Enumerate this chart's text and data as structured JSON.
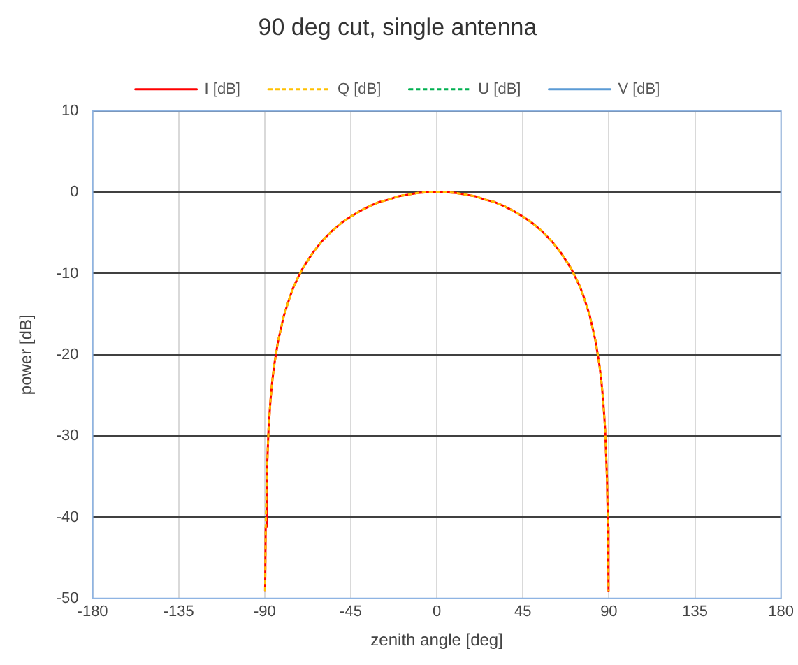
{
  "chart_data": {
    "type": "line",
    "title": "90 deg cut, single antenna",
    "xlabel": "zenith angle [deg]",
    "ylabel": "power [dB]",
    "x": [
      -89.8,
      -89.5,
      -89,
      -88,
      -87,
      -86,
      -85,
      -83,
      -80,
      -77,
      -75,
      -72,
      -70,
      -65,
      -60,
      -55,
      -50,
      -45,
      -40,
      -35,
      -30,
      -25,
      -20,
      -15,
      -10,
      -5,
      0,
      5,
      10,
      15,
      20,
      25,
      30,
      35,
      40,
      45,
      50,
      55,
      60,
      65,
      70,
      72,
      75,
      77,
      80,
      83,
      85,
      86,
      87,
      88,
      89,
      89.5,
      89.8
    ],
    "series": [
      {
        "name": "I [dB]",
        "color": "#ff0000",
        "line_style": "solid",
        "values": [
          -49.1,
          -41.2,
          -35.2,
          -29.1,
          -25.6,
          -23.1,
          -21.2,
          -18.3,
          -15.2,
          -13.0,
          -11.7,
          -10.2,
          -9.3,
          -7.5,
          -6.0,
          -4.8,
          -3.8,
          -3.0,
          -2.3,
          -1.7,
          -1.2,
          -0.9,
          -0.5,
          -0.3,
          -0.1,
          0,
          0,
          0,
          -0.1,
          -0.3,
          -0.5,
          -0.9,
          -1.2,
          -1.7,
          -2.3,
          -3.0,
          -3.8,
          -4.8,
          -6.0,
          -7.5,
          -9.3,
          -10.2,
          -11.7,
          -13.0,
          -15.2,
          -18.3,
          -21.2,
          -23.1,
          -25.6,
          -29.1,
          -35.2,
          -41.2,
          -49.1
        ]
      },
      {
        "name": "Q [dB]",
        "color": "#ffc000",
        "line_style": "dashed",
        "values": [
          -49.1,
          -41.2,
          -35.2,
          -29.1,
          -25.6,
          -23.1,
          -21.2,
          -18.3,
          -15.2,
          -13.0,
          -11.7,
          -10.2,
          -9.3,
          -7.5,
          -6.0,
          -4.8,
          -3.8,
          -3.0,
          -2.3,
          -1.7,
          -1.2,
          -0.9,
          -0.5,
          -0.3,
          -0.1,
          0,
          0,
          0,
          -0.1,
          -0.3,
          -0.5,
          -0.9,
          -1.2,
          -1.7,
          -2.3,
          -3.0,
          -3.8,
          -4.8,
          -6.0,
          -7.5,
          -9.3,
          -10.2,
          -11.7,
          -13.0,
          -15.2,
          -18.3,
          -21.2,
          -23.1,
          -25.6,
          -29.1,
          -35.2,
          -41.2,
          -49.1
        ]
      },
      {
        "name": "U [dB]",
        "color": "#00b050",
        "line_style": "dashed",
        "values": [
          null,
          null,
          null,
          null,
          null,
          null,
          null,
          null,
          null,
          null,
          null,
          null,
          null,
          null,
          null,
          null,
          null,
          null,
          null,
          null,
          null,
          null,
          null,
          null,
          null,
          null,
          null,
          null,
          null,
          null,
          null,
          null,
          null,
          null,
          null,
          null,
          null,
          null,
          null,
          null,
          null,
          null,
          null,
          null,
          null,
          null,
          null,
          null,
          null,
          null,
          null,
          null,
          null
        ]
      },
      {
        "name": "V [dB]",
        "color": "#5b9bd5",
        "line_style": "solid",
        "values": [
          null,
          null,
          null,
          null,
          null,
          null,
          null,
          null,
          null,
          null,
          null,
          null,
          null,
          null,
          null,
          null,
          null,
          null,
          null,
          null,
          null,
          null,
          null,
          null,
          null,
          null,
          null,
          null,
          null,
          null,
          null,
          null,
          null,
          null,
          null,
          null,
          null,
          null,
          null,
          null,
          null,
          null,
          null,
          null,
          null,
          null,
          null,
          null,
          null,
          null,
          null,
          null,
          null
        ]
      }
    ],
    "xlim": [
      -180,
      180
    ],
    "xticks": [
      -180,
      -135,
      -90,
      -45,
      0,
      45,
      90,
      135,
      180
    ],
    "ylim": [
      -50,
      10
    ],
    "yticks": [
      -50,
      -40,
      -30,
      -20,
      -10,
      0,
      10
    ],
    "grid": true,
    "legend": "top",
    "marker": "none"
  }
}
